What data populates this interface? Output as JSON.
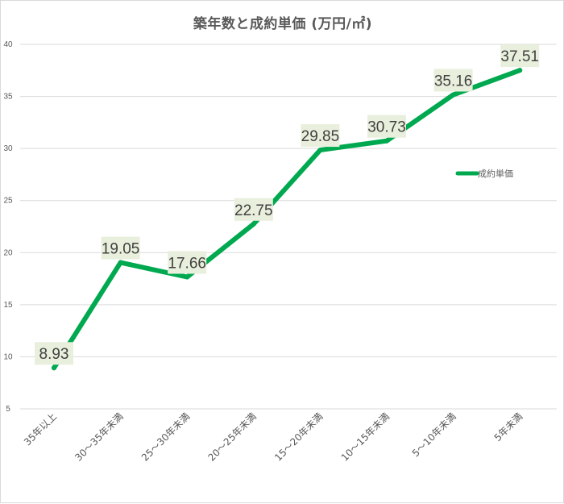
{
  "chart_data": {
    "type": "line",
    "title": "築年数と成約単価 (万円/㎡)",
    "categories": [
      "35年以上",
      "30～35年未満",
      "25～30年未満",
      "20～25年未満",
      "15～20年未満",
      "10～15年未満",
      "5～10年未満",
      "5年未満"
    ],
    "series": [
      {
        "name": "成約単価",
        "values": [
          8.93,
          19.05,
          17.66,
          22.75,
          29.85,
          30.73,
          35.16,
          37.51
        ],
        "labels": [
          "8.93",
          "19.05",
          "17.66",
          "22.75",
          "29.85",
          "30.73",
          "35.16",
          "37.51"
        ]
      }
    ],
    "ylim": [
      5,
      40
    ],
    "yticks": [
      5,
      10,
      15,
      20,
      25,
      30,
      35,
      40
    ],
    "ytick_labels": [
      "5",
      "10",
      "15",
      "20",
      "25",
      "30",
      "35",
      "40"
    ],
    "grid": true,
    "legend_position": "right",
    "colors": {
      "line": "#00a94f",
      "label_bg": "#e8efdc",
      "grid": "#d9d9d9",
      "text": "#595959"
    }
  }
}
